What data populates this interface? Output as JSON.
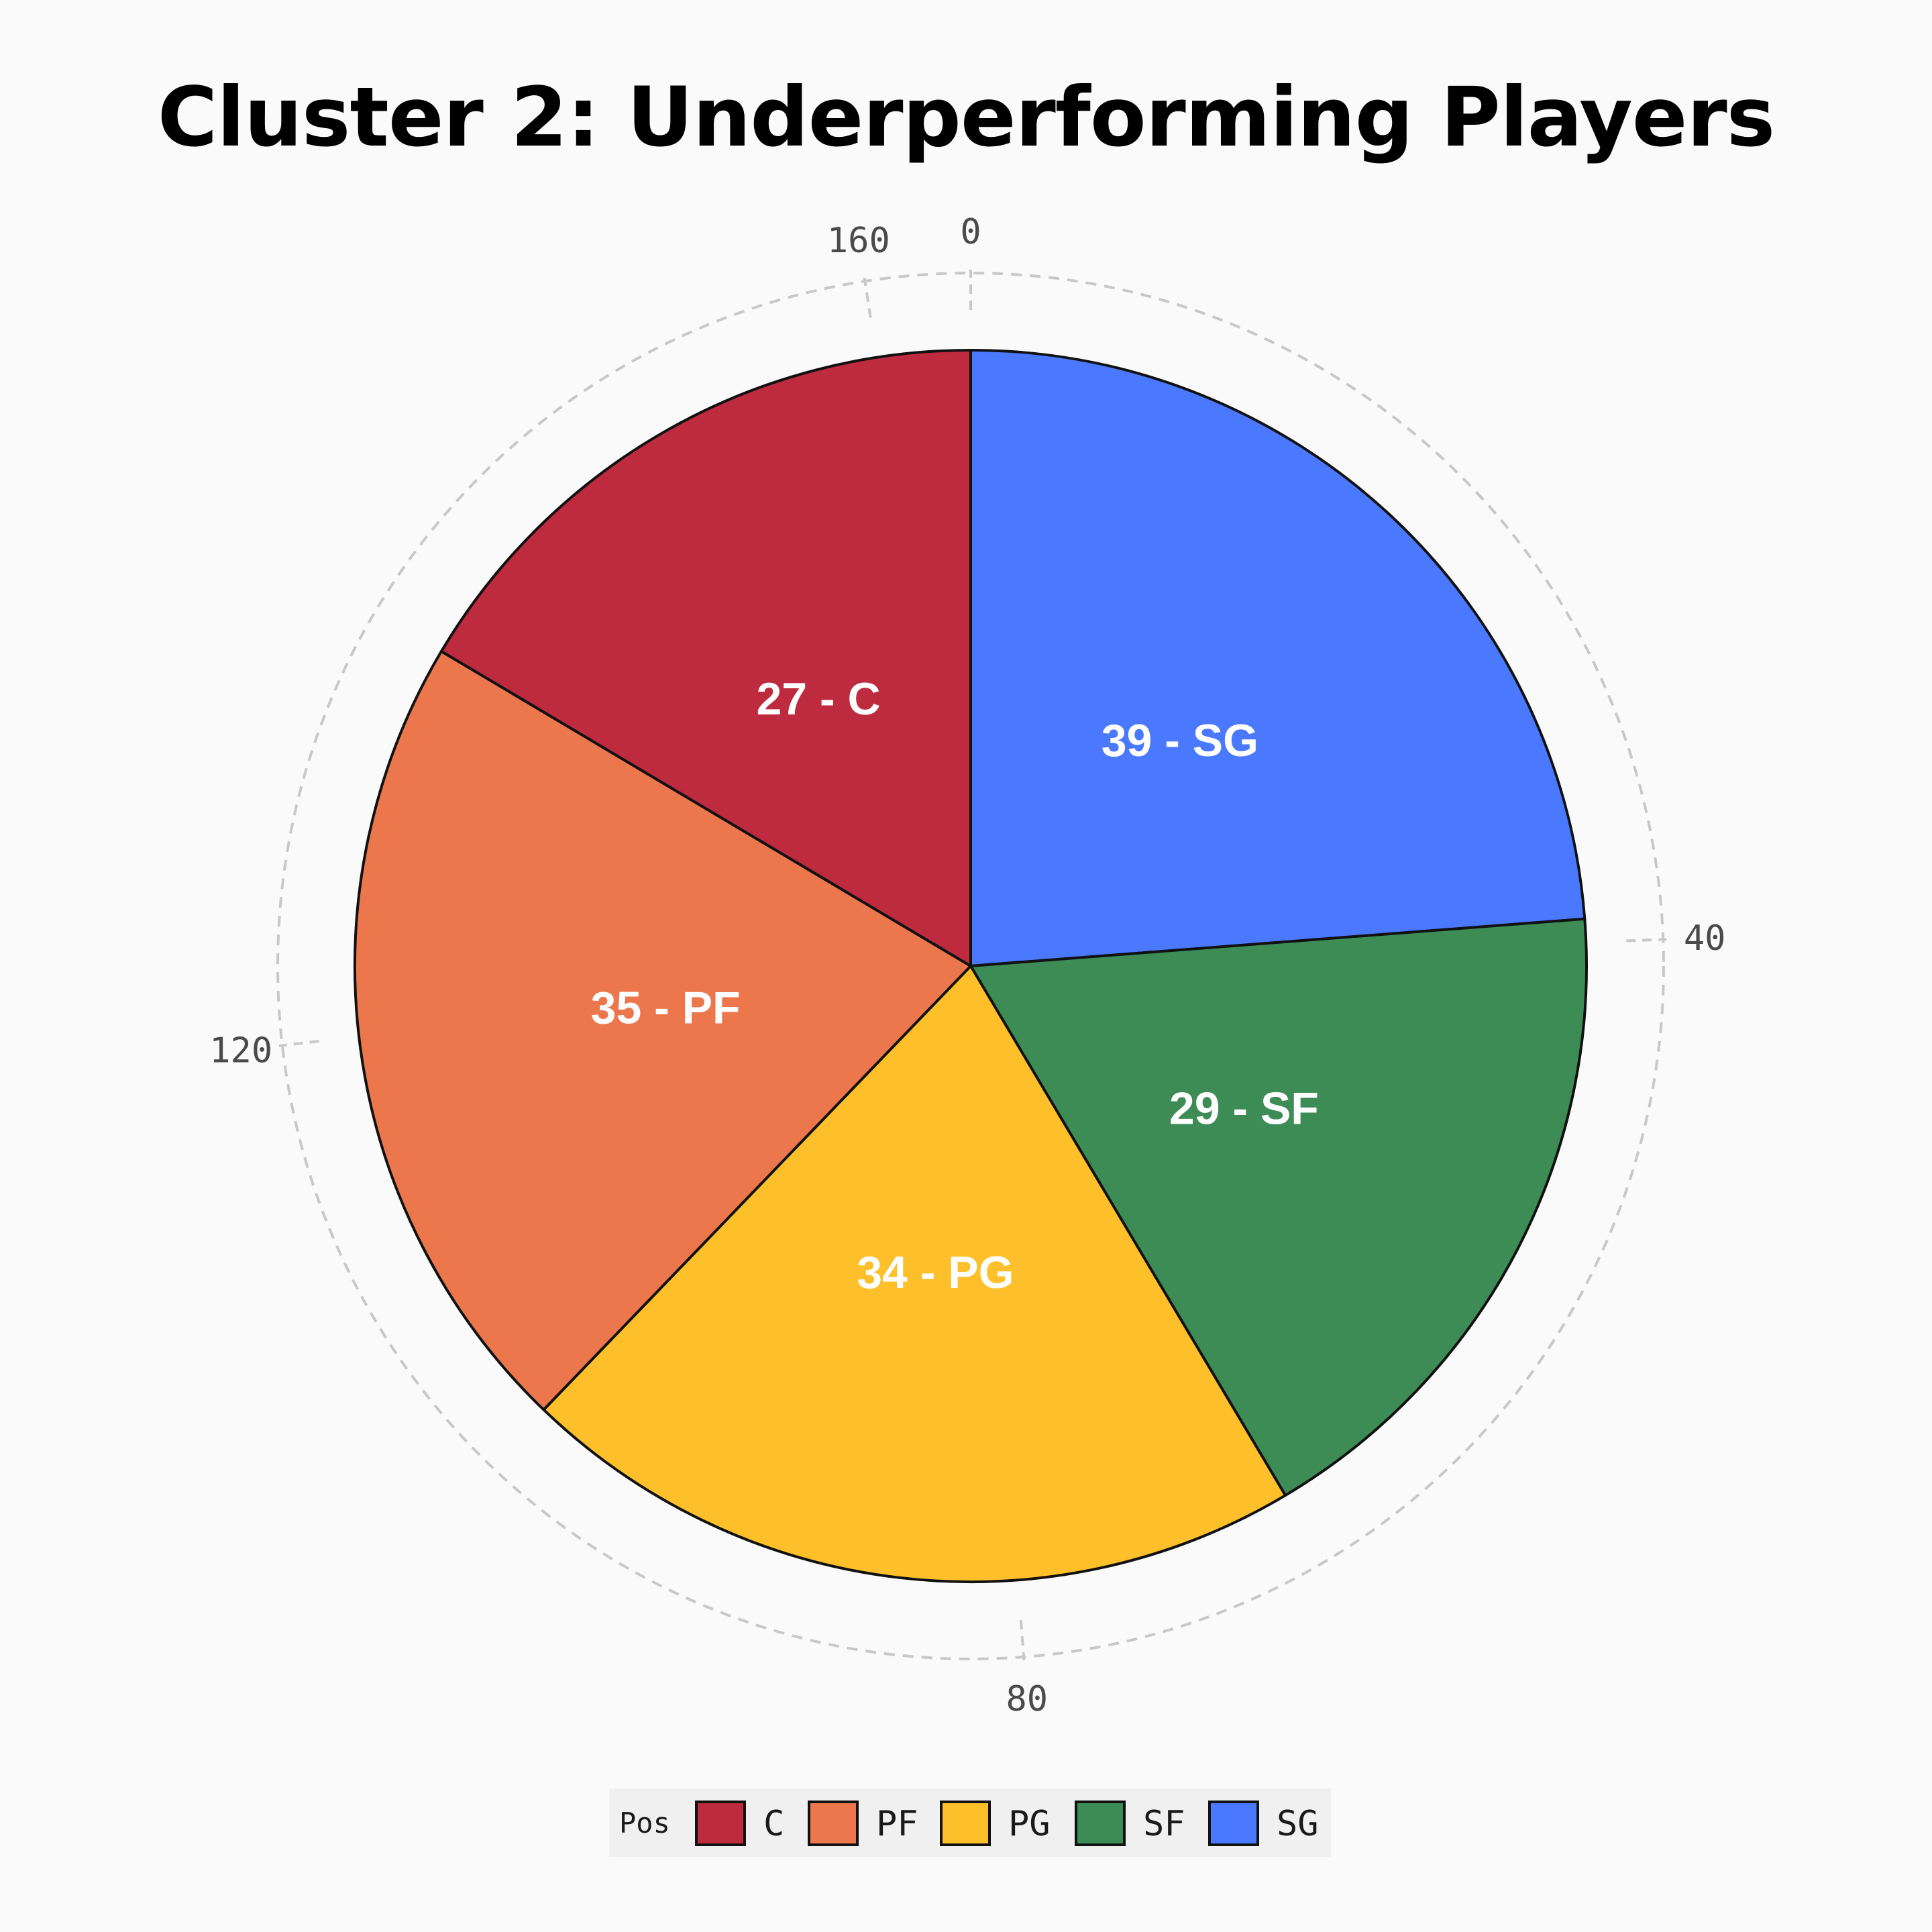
{
  "chart_data": {
    "type": "pie",
    "title": "Cluster 2: Underperforming Players",
    "slices": [
      {
        "label": "SG",
        "value": 39,
        "color": "#4a78ff",
        "text": "39 - SG"
      },
      {
        "label": "SF",
        "value": 29,
        "color": "#3d8c56",
        "text": "29 - SF"
      },
      {
        "label": "PG",
        "value": 34,
        "color": "#fdbf2a",
        "text": "34 - PG"
      },
      {
        "label": "PF",
        "value": 35,
        "color": "#ec774d",
        "text": "35 - PF"
      },
      {
        "label": "C",
        "value": 27,
        "color": "#be2a3e",
        "text": "27 - C"
      }
    ],
    "angular_axis": {
      "ticks": [
        "0",
        "40",
        "80",
        "120",
        "160"
      ],
      "range": [
        0,
        164
      ],
      "direction": "clockwise",
      "grid": "dashed"
    },
    "legend": {
      "title": "Pos",
      "entries": [
        {
          "label": "C",
          "color": "#be2a3e"
        },
        {
          "label": "PF",
          "color": "#ec774d"
        },
        {
          "label": "PG",
          "color": "#fdbf2a"
        },
        {
          "label": "SF",
          "color": "#3d8c56"
        },
        {
          "label": "SG",
          "color": "#4a78ff"
        }
      ],
      "position": "bottom-center"
    },
    "background_color": "#fafafa",
    "grid_color": "#c8c8c8",
    "outline_color": "#111111"
  }
}
